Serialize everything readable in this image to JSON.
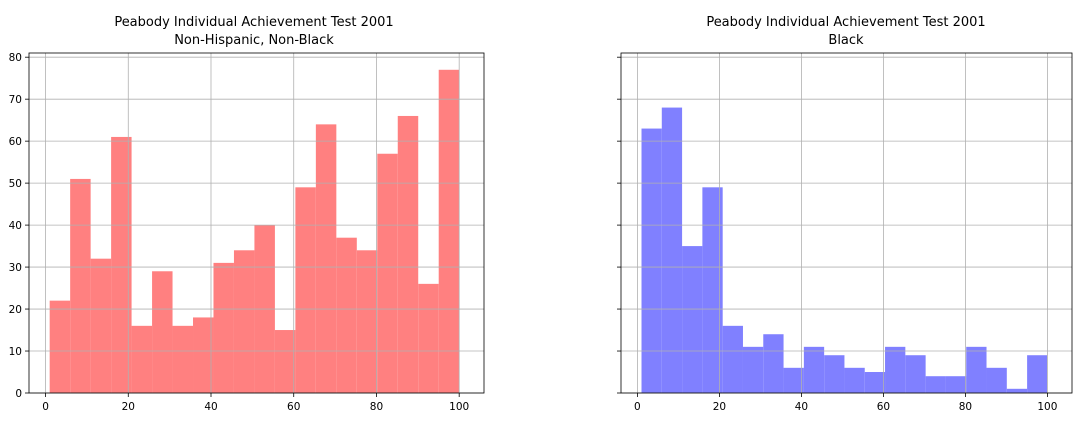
{
  "chart_data": [
    {
      "type": "bar",
      "title_line1": "Peabody Individual Achievement Test 2001",
      "title_line2": "Non-Hispanic, Non-Black",
      "color": "#ff8080",
      "bin_edges": [
        1,
        5.95,
        10.9,
        15.85,
        20.8,
        25.75,
        30.7,
        35.65,
        40.6,
        45.55,
        50.5,
        55.45,
        60.4,
        65.35,
        70.3,
        75.25,
        80.2,
        85.15,
        90.1,
        95.05,
        100
      ],
      "values": [
        22,
        51,
        32,
        61,
        16,
        29,
        16,
        18,
        31,
        34,
        40,
        15,
        49,
        64,
        37,
        34,
        57,
        66,
        26,
        77
      ],
      "xlim": [
        -4,
        106
      ],
      "ylim": [
        0,
        81
      ],
      "xticks": [
        "0",
        "20",
        "40",
        "60",
        "80",
        "100"
      ],
      "xtick_values": [
        0,
        20,
        40,
        60,
        80,
        100
      ],
      "yticks": [
        "0",
        "10",
        "20",
        "30",
        "40",
        "50",
        "60",
        "70",
        "80"
      ],
      "ytick_values": [
        0,
        10,
        20,
        30,
        40,
        50,
        60,
        70,
        80
      ],
      "show_ytick_labels": true,
      "grid": true
    },
    {
      "type": "bar",
      "title_line1": "Peabody Individual Achievement Test 2001",
      "title_line2": "Black",
      "color": "#8080ff",
      "bin_edges": [
        1,
        5.95,
        10.9,
        15.85,
        20.8,
        25.75,
        30.7,
        35.65,
        40.6,
        45.55,
        50.5,
        55.45,
        60.4,
        65.35,
        70.3,
        75.25,
        80.2,
        85.15,
        90.1,
        95.05,
        100
      ],
      "values": [
        63,
        68,
        35,
        49,
        16,
        11,
        14,
        6,
        11,
        9,
        6,
        5,
        11,
        9,
        4,
        4,
        11,
        6,
        1,
        9
      ],
      "xlim": [
        -4,
        106
      ],
      "ylim": [
        0,
        81
      ],
      "xticks": [
        "0",
        "20",
        "40",
        "60",
        "80",
        "100"
      ],
      "xtick_values": [
        0,
        20,
        40,
        60,
        80,
        100
      ],
      "yticks": [
        "0",
        "10",
        "20",
        "30",
        "40",
        "50",
        "60",
        "70",
        "80"
      ],
      "ytick_values": [
        0,
        10,
        20,
        30,
        40,
        50,
        60,
        70,
        80
      ],
      "show_ytick_labels": false,
      "grid": true
    }
  ]
}
